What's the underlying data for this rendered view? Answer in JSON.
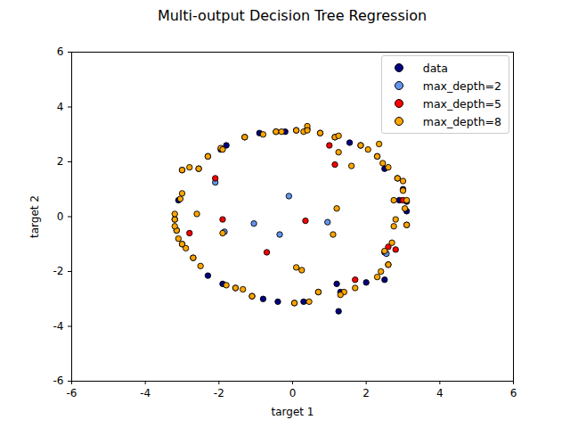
{
  "chart_data": {
    "type": "scatter",
    "title": "Multi-output Decision Tree Regression",
    "x_label": "target 1",
    "y_label": "target 2",
    "xlim": [
      -6,
      6
    ],
    "ylim": [
      -6,
      6
    ],
    "xticks": [
      -6,
      -4,
      -2,
      0,
      2,
      4,
      6
    ],
    "yticks": [
      -6,
      -4,
      -2,
      0,
      2,
      4,
      6
    ],
    "grid": false,
    "legend": "upper right",
    "marker": "circle",
    "series": [
      {
        "name": "data",
        "color": "#000080",
        "x": [
          -2.55,
          -2.3,
          -1.95,
          -1.8,
          -1.3,
          -0.9,
          -0.45,
          -0.2,
          0.1,
          0.4,
          0.75,
          1.15,
          1.55,
          1.85,
          2.3,
          2.5,
          2.85,
          3.0,
          3.1,
          3.1,
          3.1,
          2.9,
          2.5,
          2.6,
          2.5,
          2.0,
          1.3,
          1.25,
          1.2,
          0.7,
          0.3,
          0.05,
          -0.4,
          -0.8,
          -1.1,
          -1.55,
          -1.9,
          -2.3,
          -2.7,
          -3.0,
          -3.15,
          -3.2,
          -3.1,
          -3.0
        ],
        "y": [
          1.75,
          2.2,
          2.45,
          2.6,
          2.9,
          3.05,
          3.1,
          3.1,
          3.15,
          3.2,
          3.05,
          2.9,
          2.7,
          2.6,
          2.2,
          1.75,
          1.4,
          1.0,
          0.55,
          0.2,
          -0.3,
          0.6,
          -1.3,
          -1.75,
          -2.3,
          -2.4,
          -2.75,
          -3.45,
          -2.45,
          -2.75,
          -3.1,
          -3.15,
          -3.1,
          -3.0,
          -2.9,
          -2.6,
          -2.45,
          -2.15,
          -1.5,
          -1.0,
          -0.5,
          -0.1,
          0.6,
          1.7
        ]
      },
      {
        "name": "max_depth=2",
        "color": "#6495ed",
        "x": [
          -2.1,
          -0.1,
          -1.05,
          -0.35,
          0.95,
          -1.85,
          2.55
        ],
        "y": [
          1.25,
          0.75,
          -0.25,
          -0.65,
          -0.2,
          -0.55,
          -1.35
        ]
      },
      {
        "name": "max_depth=5",
        "color": "#ff0000",
        "x": [
          -2.1,
          -1.9,
          -2.8,
          -0.7,
          0.35,
          1.0,
          1.15,
          1.7,
          2.6,
          2.8,
          3.0
        ],
        "y": [
          1.4,
          -0.1,
          -0.6,
          -1.3,
          -0.15,
          2.6,
          1.9,
          -2.3,
          -1.1,
          -1.2,
          0.6
        ]
      },
      {
        "name": "max_depth=8",
        "color": "#ffa500",
        "x": [
          -2.3,
          -1.95,
          -1.9,
          -1.3,
          -0.8,
          -0.45,
          -0.3,
          0.1,
          0.3,
          0.4,
          0.4,
          0.75,
          1.15,
          1.25,
          1.25,
          1.6,
          1.85,
          2.05,
          2.3,
          2.35,
          2.45,
          2.6,
          2.85,
          3.0,
          3.0,
          3.1,
          3.05,
          3.1,
          2.8,
          2.75,
          2.7,
          2.5,
          2.6,
          2.4,
          2.3,
          1.7,
          1.4,
          1.3,
          0.7,
          0.45,
          0.05,
          -1.8,
          -1.55,
          -1.35,
          -1.1,
          -2.5,
          -2.7,
          -2.9,
          -3.0,
          -3.1,
          -3.15,
          -3.2,
          -3.2,
          -3.2,
          -3.05,
          -3.0,
          -2.8,
          -2.55,
          -3.0,
          -2.6,
          1.1,
          1.2,
          0.1,
          0.25,
          -1.9,
          2.75
        ],
        "y": [
          2.2,
          2.5,
          2.45,
          2.9,
          3.0,
          3.1,
          3.1,
          3.15,
          3.1,
          3.3,
          3.15,
          3.05,
          2.9,
          2.35,
          2.95,
          1.85,
          2.6,
          2.45,
          2.2,
          2.65,
          1.95,
          1.8,
          1.4,
          1.3,
          0.95,
          0.6,
          0.3,
          -0.3,
          -0.1,
          -0.35,
          -0.95,
          -1.25,
          -1.75,
          -2.0,
          -2.2,
          -2.6,
          -2.75,
          -2.85,
          -2.75,
          -3.1,
          -3.15,
          -2.5,
          -2.6,
          -2.65,
          -2.9,
          -1.8,
          -1.5,
          -1.15,
          -1.0,
          -0.8,
          -0.5,
          -0.35,
          -0.1,
          0.1,
          0.65,
          0.85,
          1.8,
          1.75,
          1.7,
          0.1,
          -0.65,
          0.3,
          -1.85,
          -1.95,
          -0.6,
          0.6
        ]
      }
    ]
  }
}
